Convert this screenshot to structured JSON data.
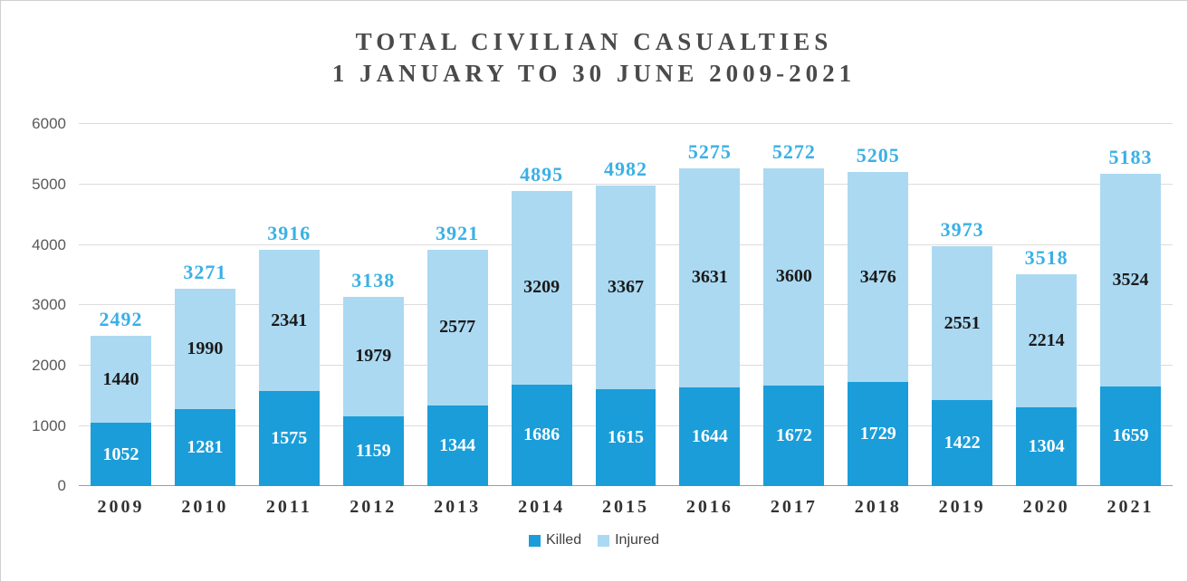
{
  "title": {
    "line1": "TOTAL CIVILIAN CASUALTIES",
    "line2": "1 JANUARY TO 30 JUNE 2009-2021"
  },
  "colors": {
    "killed": "#1B9DD9",
    "injured": "#ABD9F2",
    "total_label": "#3AB0E5",
    "grid": "#DCDCDC",
    "axis_text": "#595959",
    "title_text": "#4A4A4A"
  },
  "legend": {
    "items": [
      {
        "label": "Killed",
        "color": "#1B9DD9"
      },
      {
        "label": "Injured",
        "color": "#ABD9F2"
      }
    ],
    "position": "bottom"
  },
  "chart_data": {
    "type": "bar",
    "stacked": true,
    "title": "TOTAL CIVILIAN CASUALTIES 1 JANUARY TO 30 JUNE 2009-2021",
    "categories": [
      "2009",
      "2010",
      "2011",
      "2012",
      "2013",
      "2014",
      "2015",
      "2016",
      "2017",
      "2018",
      "2019",
      "2020",
      "2021"
    ],
    "series": [
      {
        "name": "Killed",
        "values": [
          1052,
          1281,
          1575,
          1159,
          1344,
          1686,
          1615,
          1644,
          1672,
          1729,
          1422,
          1304,
          1659
        ]
      },
      {
        "name": "Injured",
        "values": [
          1440,
          1990,
          2341,
          1979,
          2577,
          3209,
          3367,
          3631,
          3600,
          3476,
          2551,
          2214,
          3524
        ]
      }
    ],
    "totals": [
      2492,
      3271,
      3916,
      3138,
      3921,
      4895,
      4982,
      5275,
      5272,
      5205,
      3973,
      3518,
      5183
    ],
    "xlabel": "",
    "ylabel": "",
    "ylim": [
      0,
      6000
    ],
    "yticks": [
      0,
      1000,
      2000,
      3000,
      4000,
      5000,
      6000
    ],
    "grid": true,
    "legend_position": "bottom"
  }
}
